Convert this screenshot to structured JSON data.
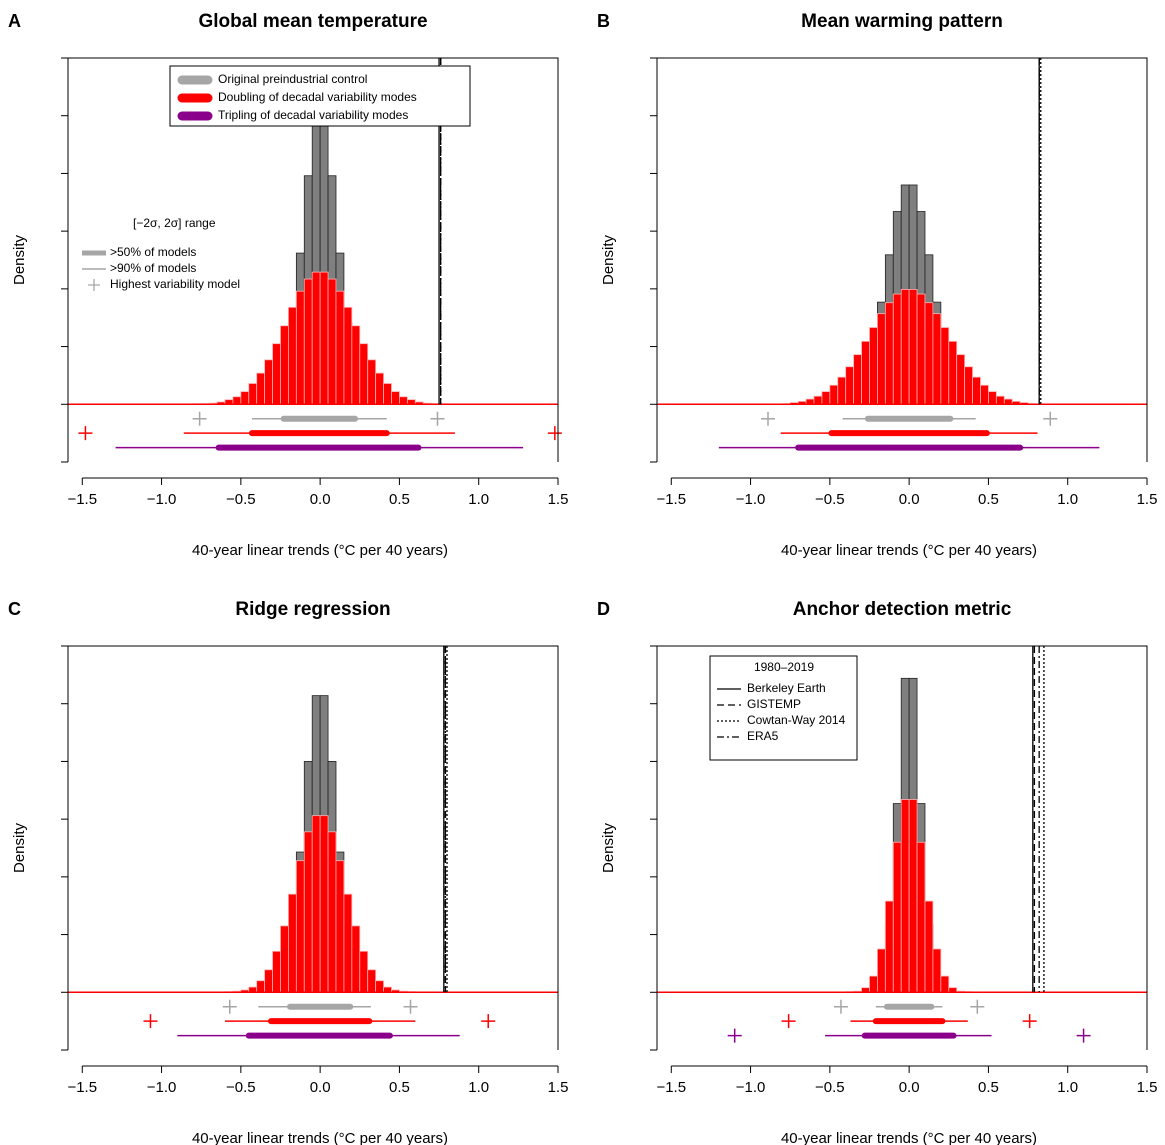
{
  "chart_data": [
    {
      "type": "histogram",
      "panel": "A",
      "title": "Global mean temperature",
      "x_label": "40-year linear trends (°C per 40 years)",
      "y_label": "Density",
      "xlim": [
        -1.59,
        1.5
      ],
      "ylim": [
        -1,
        6
      ],
      "yticks": [
        -1,
        0,
        1,
        2,
        3,
        4,
        5,
        6
      ],
      "xticks": [
        {
          "value": -1.5,
          "label": "−1.5"
        },
        {
          "value": -1,
          "label": "−1.0"
        },
        {
          "value": -0.5,
          "label": "−0.5"
        },
        {
          "value": 0,
          "label": "0.0"
        },
        0.5,
        {
          "value": 1,
          "label": "1.0"
        },
        1.5
      ],
      "bins": [
        -0.8,
        -0.75,
        -0.7,
        -0.65,
        -0.6,
        -0.55,
        -0.5,
        -0.45,
        -0.4,
        -0.35,
        -0.3,
        -0.25,
        -0.2,
        -0.15,
        -0.1,
        -0.05,
        0,
        0.05,
        0.1,
        0.15,
        0.2,
        0.25,
        0.3,
        0.35,
        0.4,
        0.45,
        0.5,
        0.55,
        0.6,
        0.65,
        0.7,
        0.75,
        0.8
      ],
      "groups": [
        {
          "name": "Original preindustrial control",
          "color": "#a6a6a6",
          "hist_color": "#7f7f7f",
          "hist": [
            0,
            0,
            0,
            0,
            0,
            0,
            0,
            0,
            0.02,
            0.06,
            0.22,
            0.62,
            1.41,
            2.62,
            3.96,
            4.87,
            4.87,
            3.96,
            2.62,
            1.41,
            0.62,
            0.22,
            0.06,
            0.02,
            0,
            0,
            0,
            0,
            0,
            0,
            0,
            0
          ],
          "thick": [
            -0.23,
            0.22
          ],
          "thin": [
            -0.43,
            0.42
          ],
          "highest": [
            -0.76,
            0.74
          ]
        },
        {
          "name": "Doubling of decadal variability modes",
          "color": "#ff0000",
          "hist_color": "#ff0000",
          "hist": [
            0.01,
            0.01,
            0.02,
            0.04,
            0.08,
            0.13,
            0.22,
            0.36,
            0.54,
            0.77,
            1.05,
            1.36,
            1.68,
            1.96,
            2.17,
            2.29,
            2.29,
            2.17,
            1.96,
            1.68,
            1.36,
            1.05,
            0.77,
            0.54,
            0.36,
            0.22,
            0.13,
            0.08,
            0.04,
            0.02,
            0.01,
            0.01
          ],
          "thick": [
            -0.43,
            0.42
          ],
          "thin": [
            -0.86,
            0.85
          ],
          "highest": [
            -1.48,
            1.48
          ]
        },
        {
          "name": "Tripling of decadal variability modes",
          "color": "#8b008b",
          "thick": [
            -0.64,
            0.62
          ],
          "thin": [
            -1.29,
            1.28
          ]
        }
      ],
      "range_legend": {
        "title": "[−2σ, 2σ] range",
        "items": [
          ">50% of models",
          ">90% of models",
          "Highest variability model"
        ]
      },
      "reference_lines": [
        {
          "style": "solid",
          "value": 0.75
        },
        {
          "style": "dashed",
          "value": 0.76
        },
        {
          "style": "dotted",
          "value": 0.76
        },
        {
          "style": "dashdot",
          "value": 0.76
        }
      ]
    },
    {
      "type": "histogram",
      "panel": "B",
      "title": "Mean warming pattern",
      "x_label": "40-year linear trends (°C per 40 years)",
      "y_label": "Density",
      "xlim": [
        -1.59,
        1.5
      ],
      "ylim": [
        -1,
        6
      ],
      "yticks": [
        -1,
        0,
        1,
        2,
        3,
        4,
        5,
        6
      ],
      "xticks": [
        {
          "value": -1.5,
          "label": "−1.5"
        },
        {
          "value": -1,
          "label": "−1.0"
        },
        {
          "value": -0.5,
          "label": "−0.5"
        },
        {
          "value": 0,
          "label": "0.0"
        },
        0.5,
        {
          "value": 1,
          "label": "1.0"
        },
        1.5
      ],
      "bins": [
        -0.8,
        -0.75,
        -0.7,
        -0.65,
        -0.6,
        -0.55,
        -0.5,
        -0.45,
        -0.4,
        -0.35,
        -0.3,
        -0.25,
        -0.2,
        -0.15,
        -0.1,
        -0.05,
        0,
        0.05,
        0.1,
        0.15,
        0.2,
        0.25,
        0.3,
        0.35,
        0.4,
        0.45,
        0.5,
        0.55,
        0.6,
        0.65,
        0.7,
        0.75,
        0.8
      ],
      "groups": [
        {
          "color": "#a6a6a6",
          "hist_color": "#7f7f7f",
          "hist": [
            0,
            0,
            0,
            0,
            0,
            0,
            0.01,
            0.04,
            0.11,
            0.26,
            0.56,
            1.06,
            1.77,
            2.59,
            3.34,
            3.8,
            3.8,
            3.34,
            2.59,
            1.77,
            1.06,
            0.56,
            0.26,
            0.11,
            0.04,
            0.01,
            0,
            0,
            0,
            0,
            0,
            0
          ],
          "thick": [
            -0.26,
            0.26
          ],
          "thin": [
            -0.42,
            0.42
          ],
          "highest": [
            -0.89,
            0.89
          ]
        },
        {
          "color": "#ff0000",
          "hist_color": "#ff0000",
          "hist": [
            0.01,
            0.03,
            0.05,
            0.09,
            0.14,
            0.22,
            0.33,
            0.47,
            0.65,
            0.86,
            1.09,
            1.33,
            1.57,
            1.76,
            1.91,
            1.99,
            1.99,
            1.91,
            1.76,
            1.57,
            1.33,
            1.09,
            0.86,
            0.65,
            0.47,
            0.33,
            0.22,
            0.14,
            0.09,
            0.05,
            0.03,
            0.01
          ],
          "thick": [
            -0.49,
            0.49
          ],
          "thin": [
            -0.81,
            0.81
          ]
        },
        {
          "color": "#8b008b",
          "thick": [
            -0.7,
            0.7
          ],
          "thin": [
            -1.2,
            1.2
          ]
        }
      ],
      "reference_lines": [
        {
          "style": "solid",
          "value": 0.82
        },
        {
          "style": "dashed",
          "value": 0.82
        },
        {
          "style": "dotted",
          "value": 0.83
        },
        {
          "style": "dashdot",
          "value": 0.82
        }
      ]
    },
    {
      "type": "histogram",
      "panel": "C",
      "title": "Ridge regression",
      "x_label": "40-year linear trends (°C per 40 years)",
      "y_label": "Density",
      "xlim": [
        -1.59,
        1.5
      ],
      "ylim": [
        -1,
        6
      ],
      "yticks": [
        -1,
        0,
        1,
        2,
        3,
        4,
        5,
        6
      ],
      "xticks": [
        {
          "value": -1.5,
          "label": "−1.5"
        },
        {
          "value": -1,
          "label": "−1.0"
        },
        {
          "value": -0.5,
          "label": "−0.5"
        },
        {
          "value": 0,
          "label": "0.0"
        },
        0.5,
        {
          "value": 1,
          "label": "1.0"
        },
        1.5
      ],
      "bins": [
        -0.8,
        -0.75,
        -0.7,
        -0.65,
        -0.6,
        -0.55,
        -0.5,
        -0.45,
        -0.4,
        -0.35,
        -0.3,
        -0.25,
        -0.2,
        -0.15,
        -0.1,
        -0.05,
        0,
        0.05,
        0.1,
        0.15,
        0.2,
        0.25,
        0.3,
        0.35,
        0.4,
        0.45,
        0.5,
        0.55,
        0.6,
        0.65,
        0.7,
        0.75,
        0.8
      ],
      "groups": [
        {
          "color": "#a6a6a6",
          "hist_color": "#7f7f7f",
          "hist": [
            0,
            0,
            0,
            0,
            0,
            0,
            0,
            0,
            0,
            0.03,
            0.12,
            0.42,
            1.15,
            2.43,
            4.0,
            5.14,
            5.14,
            4.0,
            2.43,
            1.15,
            0.42,
            0.12,
            0.03,
            0,
            0,
            0,
            0,
            0,
            0,
            0,
            0,
            0
          ],
          "thick": [
            -0.19,
            0.19
          ],
          "thin": [
            -0.39,
            0.32
          ],
          "highest": [
            -0.57,
            0.57
          ]
        },
        {
          "color": "#ff0000",
          "hist_color": "#ff0000",
          "hist": [
            0,
            0,
            0,
            0,
            0.01,
            0.02,
            0.04,
            0.09,
            0.2,
            0.39,
            0.71,
            1.15,
            1.7,
            2.28,
            2.78,
            3.06,
            3.06,
            2.78,
            2.28,
            1.7,
            1.15,
            0.71,
            0.39,
            0.2,
            0.09,
            0.04,
            0.02,
            0.01,
            0,
            0,
            0,
            0
          ],
          "thick": [
            -0.31,
            0.31
          ],
          "thin": [
            -0.6,
            0.6
          ],
          "highest": [
            -1.07,
            1.06
          ]
        },
        {
          "color": "#8b008b",
          "thick": [
            -0.45,
            0.44
          ],
          "thin": [
            -0.9,
            0.88
          ]
        }
      ],
      "reference_lines": [
        {
          "style": "solid",
          "value": 0.78
        },
        {
          "style": "dashed",
          "value": 0.79
        },
        {
          "style": "dotted",
          "value": 0.8
        },
        {
          "style": "dashdot",
          "value": 0.79
        }
      ]
    },
    {
      "type": "histogram",
      "panel": "D",
      "title": "Anchor detection metric",
      "x_label": "40-year linear trends (°C per 40 years)",
      "y_label": "Density",
      "xlim": [
        -1.59,
        1.5
      ],
      "ylim": [
        -1,
        6
      ],
      "yticks": [
        -1,
        0,
        1,
        2,
        3,
        4,
        5,
        6
      ],
      "xticks": [
        {
          "value": -1.5,
          "label": "−1.5"
        },
        {
          "value": -1,
          "label": "−1.0"
        },
        {
          "value": -0.5,
          "label": "−0.5"
        },
        {
          "value": 0,
          "label": "0.0"
        },
        0.5,
        {
          "value": 1,
          "label": "1.0"
        },
        1.5
      ],
      "bins": [
        -0.8,
        -0.75,
        -0.7,
        -0.65,
        -0.6,
        -0.55,
        -0.5,
        -0.45,
        -0.4,
        -0.35,
        -0.3,
        -0.25,
        -0.2,
        -0.15,
        -0.1,
        -0.05,
        0,
        0.05,
        0.1,
        0.15,
        0.2,
        0.25,
        0.3,
        0.35,
        0.4,
        0.45,
        0.5,
        0.55,
        0.6,
        0.65,
        0.7,
        0.75,
        0.8
      ],
      "groups": [
        {
          "color": "#a6a6a6",
          "hist_color": "#7f7f7f",
          "hist": [
            0,
            0,
            0,
            0,
            0,
            0,
            0,
            0,
            0,
            0,
            0,
            0.03,
            0.26,
            1.18,
            3.27,
            5.44,
            5.44,
            3.27,
            1.18,
            0.26,
            0.03,
            0,
            0,
            0,
            0,
            0,
            0,
            0,
            0,
            0,
            0,
            0
          ],
          "thick": [
            -0.14,
            0.14
          ],
          "thin": [
            -0.21,
            0.21
          ],
          "highest": [
            -0.43,
            0.43
          ]
        },
        {
          "color": "#ff0000",
          "hist_color": "#ff0000",
          "hist": [
            0,
            0,
            0,
            0,
            0,
            0,
            0,
            0,
            0.01,
            0.02,
            0.08,
            0.28,
            0.75,
            1.58,
            2.6,
            3.34,
            3.34,
            2.6,
            1.58,
            0.75,
            0.28,
            0.08,
            0.02,
            0.01,
            0,
            0,
            0,
            0,
            0,
            0,
            0,
            0
          ],
          "thick": [
            -0.21,
            0.21
          ],
          "thin": [
            -0.37,
            0.37
          ],
          "highest": [
            -0.76,
            0.76
          ]
        },
        {
          "color": "#8b008b",
          "thick": [
            -0.28,
            0.28
          ],
          "thin": [
            -0.53,
            0.52
          ],
          "highest": [
            -1.1,
            1.1
          ]
        }
      ],
      "reference_legend": {
        "title": "1980–2019"
      },
      "reference_lines": [
        {
          "name": "Berkeley Earth",
          "style": "solid",
          "value": 0.78
        },
        {
          "name": "GISTEMP",
          "style": "dashed",
          "value": 0.79
        },
        {
          "name": "Cowtan-Way 2014",
          "style": "dotted",
          "value": 0.85
        },
        {
          "name": "ERA5",
          "style": "dashdot",
          "value": 0.82
        }
      ]
    }
  ]
}
